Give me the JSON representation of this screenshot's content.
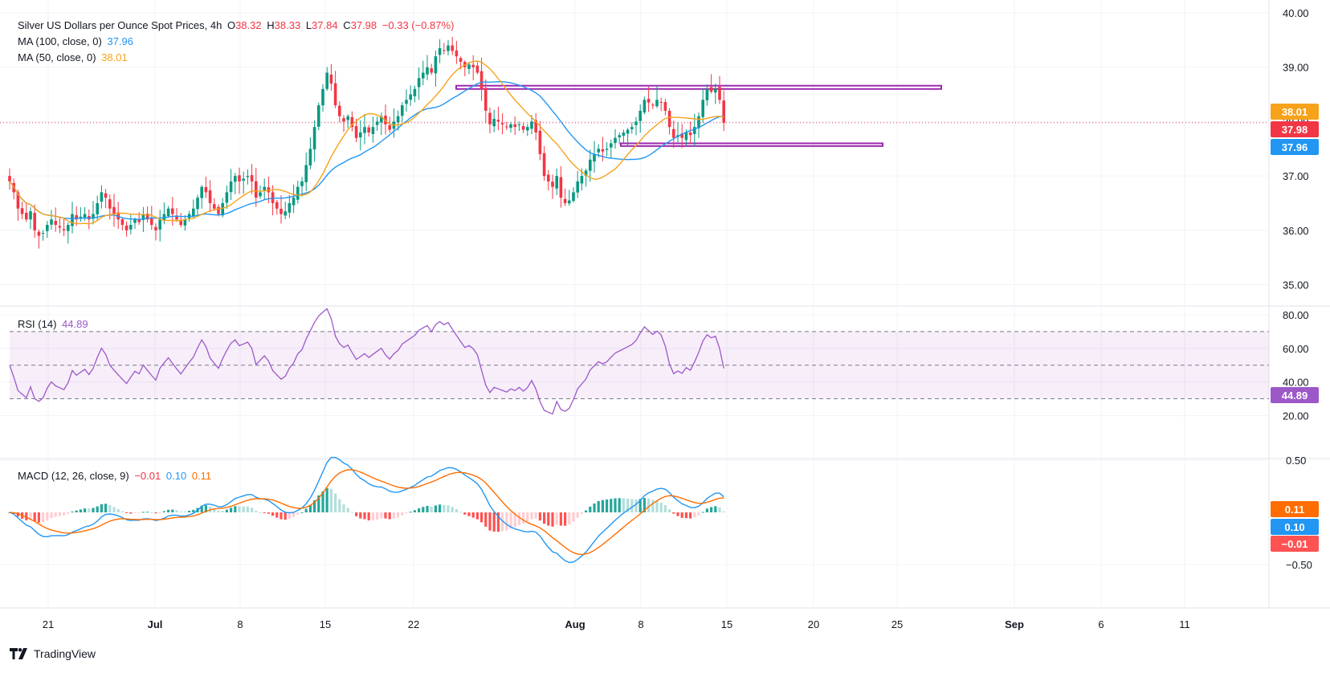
{
  "header": {
    "symbol": "Silver US Dollars per Ounce Spot Prices, 4h",
    "o_label": "O",
    "o_value": "38.32",
    "h_label": "H",
    "h_value": "38.33",
    "l_label": "L",
    "l_value": "37.84",
    "c_label": "C",
    "c_value": "37.98",
    "change": "−0.33 (−0.87%)",
    "ma100_label": "MA (100, close, 0)",
    "ma100_value": "37.96",
    "ma50_label": "MA (50, close, 0)",
    "ma50_value": "38.01",
    "rsi_label": "RSI (14)",
    "rsi_value": "44.89",
    "macd_label": "MACD (12, 26, close, 9)",
    "macd_hist": "−0.01",
    "macd_value": "0.10",
    "macd_signal": "0.11"
  },
  "colors": {
    "up": "#089981",
    "down": "#f23645",
    "ma100": "#2196f3",
    "ma50": "#f7a21b",
    "rsi": "#9c58c9",
    "zone": "#9c27b0",
    "macd": "#2196f3",
    "signal": "#ff6d00"
  },
  "price_axis": {
    "ticks": [
      "40.00",
      "39.00",
      "38.00",
      "37.00",
      "36.00",
      "35.00"
    ],
    "range": [
      34.9,
      40.0
    ]
  },
  "rsi_axis": {
    "ticks": [
      "80.00",
      "60.00",
      "40.00",
      "20.00"
    ],
    "range": [
      10,
      90
    ],
    "bands": [
      70,
      50,
      30
    ]
  },
  "macd_axis": {
    "ticks": [
      "0.50",
      "-0.50"
    ],
    "range": [
      -0.56,
      0.66
    ]
  },
  "x_axis": {
    "ticks": [
      "21",
      "Jul",
      "8",
      "15",
      "22",
      "Aug",
      "8",
      "15",
      "20",
      "25",
      "Sep",
      "6",
      "11"
    ]
  },
  "price_tags": {
    "ma50": "38.01",
    "close": "37.98",
    "ma100": "37.96"
  },
  "rsi_tag": "44.89",
  "macd_tags": {
    "signal": "0.11",
    "macd": "0.10",
    "hist": "-0.01"
  },
  "brand": "TradingView",
  "chart_data": {
    "type": "candlestick",
    "timeframe": "4h",
    "close_last": 37.98,
    "resistance_zone": [
      38.6,
      38.66
    ],
    "support_zone": [
      37.55,
      37.6
    ],
    "closes": [
      36.9,
      36.7,
      36.4,
      36.3,
      36.2,
      36.35,
      36.0,
      35.9,
      35.95,
      36.1,
      36.2,
      36.1,
      36.05,
      36.0,
      36.1,
      36.3,
      36.2,
      36.25,
      36.3,
      36.2,
      36.3,
      36.5,
      36.7,
      36.6,
      36.4,
      36.3,
      36.2,
      36.1,
      36.0,
      36.1,
      36.2,
      36.15,
      36.3,
      36.2,
      36.1,
      36.0,
      36.2,
      36.3,
      36.4,
      36.3,
      36.2,
      36.1,
      36.2,
      36.3,
      36.4,
      36.6,
      36.8,
      36.7,
      36.5,
      36.4,
      36.3,
      36.5,
      36.7,
      36.9,
      37.0,
      36.9,
      36.95,
      37.0,
      36.9,
      36.6,
      36.7,
      36.8,
      36.7,
      36.5,
      36.4,
      36.3,
      36.35,
      36.5,
      36.6,
      36.8,
      36.9,
      37.2,
      37.5,
      37.9,
      38.3,
      38.6,
      38.9,
      38.7,
      38.3,
      38.1,
      38.0,
      38.1,
      37.9,
      37.7,
      37.8,
      37.9,
      37.8,
      37.9,
      38.0,
      38.1,
      37.95,
      37.85,
      38.0,
      38.1,
      38.3,
      38.4,
      38.5,
      38.6,
      38.8,
      38.9,
      39.0,
      38.9,
      39.2,
      39.35,
      39.3,
      39.4,
      39.3,
      39.2,
      39.1,
      39.0,
      39.05,
      39.0,
      38.9,
      38.6,
      38.2,
      37.95,
      38.05,
      38.0,
      37.95,
      37.9,
      37.95,
      37.9,
      37.95,
      37.85,
      37.9,
      38.0,
      37.8,
      37.4,
      37.0,
      36.9,
      36.8,
      37.0,
      36.6,
      36.5,
      36.55,
      36.7,
      36.9,
      37.0,
      37.1,
      37.3,
      37.4,
      37.5,
      37.45,
      37.5,
      37.6,
      37.7,
      37.75,
      37.8,
      37.85,
      37.9,
      38.0,
      38.2,
      38.4,
      38.35,
      38.3,
      38.4,
      38.35,
      38.2,
      37.9,
      37.7,
      37.75,
      37.7,
      37.8,
      37.75,
      37.9,
      38.1,
      38.4,
      38.6,
      38.55,
      38.6,
      38.4,
      37.98
    ]
  }
}
